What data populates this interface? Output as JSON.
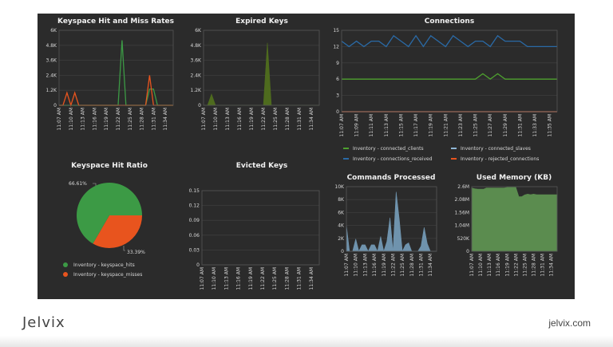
{
  "brand": {
    "logo_text": "Jelvix",
    "site": "jelvix.com"
  },
  "colors": {
    "background": "#2b2b2b",
    "grid": "#3c3c3c",
    "hits": "#3c9a45",
    "misses": "#e8541e",
    "connected_clients": "#4ea12f",
    "connected_slaves": "#8fb7d6",
    "connections_received": "#2a6aa6",
    "rejected_connections": "#e8541e",
    "expired": "#4e6b1e",
    "commands": "#6f93ad",
    "memory": "#5b8c4f"
  },
  "chart_data": [
    {
      "type": "line",
      "title": "Keyspace Hit and Miss Rates",
      "x": [
        "11:07",
        "11:08",
        "11:09",
        "11:10",
        "11:11",
        "11:12",
        "11:13",
        "11:14",
        "11:15",
        "11:16",
        "11:17",
        "11:18",
        "11:19",
        "11:20",
        "11:21",
        "11:22",
        "11:23",
        "11:24",
        "11:25",
        "11:26",
        "11:27",
        "11:28",
        "11:29",
        "11:30",
        "11:31",
        "11:32",
        "11:33",
        "11:34",
        "11:35",
        "11:36"
      ],
      "xticks": [
        "11:07 AM",
        "11:10 AM",
        "11:13 AM",
        "11:16 AM",
        "11:19 AM",
        "11:22 AM",
        "11:25 AM",
        "11:28 AM",
        "11:31 AM",
        "11:34 AM"
      ],
      "ylim": [
        0,
        6000
      ],
      "yticks": [
        0,
        1200,
        2400,
        3600,
        4800,
        6000
      ],
      "ytick_labels": [
        "0",
        "1.2K",
        "2.4K",
        "3.6K",
        "4.8K",
        "6K"
      ],
      "grid": true,
      "series": [
        {
          "key": "hits",
          "values": [
            0,
            0,
            0,
            0,
            0,
            0,
            0,
            0,
            0,
            0,
            0,
            0,
            0,
            0,
            0,
            0,
            5200,
            0,
            0,
            0,
            0,
            0,
            0,
            1300,
            1300,
            0,
            0,
            0,
            0,
            0
          ]
        },
        {
          "key": "misses",
          "values": [
            0,
            0,
            1000,
            0,
            1000,
            0,
            0,
            0,
            0,
            0,
            0,
            0,
            0,
            0,
            0,
            0,
            0,
            0,
            0,
            0,
            0,
            0,
            0,
            2400,
            0,
            0,
            0,
            0,
            0,
            0
          ]
        }
      ]
    },
    {
      "type": "area",
      "title": "Expired Keys",
      "x": [
        "11:07",
        "11:08",
        "11:09",
        "11:10",
        "11:11",
        "11:12",
        "11:13",
        "11:14",
        "11:15",
        "11:16",
        "11:17",
        "11:18",
        "11:19",
        "11:20",
        "11:21",
        "11:22",
        "11:23",
        "11:24",
        "11:25",
        "11:26",
        "11:27",
        "11:28",
        "11:29",
        "11:30",
        "11:31",
        "11:32",
        "11:33",
        "11:34",
        "11:35",
        "11:36"
      ],
      "xticks": [
        "11:07 AM",
        "11:10 AM",
        "11:13 AM",
        "11:16 AM",
        "11:19 AM",
        "11:22 AM",
        "11:25 AM",
        "11:28 AM",
        "11:31 AM",
        "11:34 AM"
      ],
      "ylim": [
        0,
        6000
      ],
      "yticks": [
        0,
        1200,
        2400,
        3600,
        4800,
        6000
      ],
      "ytick_labels": [
        "0",
        "1.2K",
        "2.4K",
        "3.6K",
        "4.8K",
        "6K"
      ],
      "grid": true,
      "series": [
        {
          "key": "expired",
          "values": [
            0,
            0,
            900,
            0,
            0,
            0,
            0,
            0,
            0,
            0,
            0,
            0,
            0,
            0,
            0,
            0,
            5000,
            0,
            0,
            0,
            0,
            0,
            0,
            0,
            0,
            0,
            0,
            0,
            0,
            0
          ]
        }
      ]
    },
    {
      "type": "line",
      "title": "Connections",
      "x": [
        "11:07",
        "11:08",
        "11:09",
        "11:10",
        "11:11",
        "11:12",
        "11:13",
        "11:14",
        "11:15",
        "11:16",
        "11:17",
        "11:18",
        "11:19",
        "11:20",
        "11:21",
        "11:22",
        "11:23",
        "11:24",
        "11:25",
        "11:26",
        "11:27",
        "11:28",
        "11:29",
        "11:30",
        "11:31",
        "11:32",
        "11:33",
        "11:34",
        "11:35",
        "11:36"
      ],
      "xticks": [
        "11:07 AM",
        "11:09 AM",
        "11:11 AM",
        "11:13 AM",
        "11:15 AM",
        "11:17 AM",
        "11:19 AM",
        "11:21 AM",
        "11:23 AM",
        "11:25 AM",
        "11:27 AM",
        "11:29 AM",
        "11:31 AM",
        "11:33 AM",
        "11:35 AM"
      ],
      "ylim": [
        0,
        15
      ],
      "yticks": [
        0,
        3,
        6,
        9,
        12,
        15
      ],
      "ytick_labels": [
        "0",
        "3",
        "6",
        "9",
        "12",
        "15"
      ],
      "grid": true,
      "legend": "bottom",
      "series": [
        {
          "key": "connected_clients",
          "name": "Inventory - connected_clients",
          "values": [
            6,
            6,
            6,
            6,
            6,
            6,
            6,
            6,
            6,
            6,
            6,
            6,
            6,
            6,
            6,
            6,
            6,
            6,
            6,
            7,
            6,
            7,
            6,
            6,
            6,
            6,
            6,
            6,
            6,
            6
          ]
        },
        {
          "key": "connected_slaves",
          "name": "Inventory - connected_slaves",
          "values": [
            0,
            0,
            0,
            0,
            0,
            0,
            0,
            0,
            0,
            0,
            0,
            0,
            0,
            0,
            0,
            0,
            0,
            0,
            0,
            0,
            0,
            0,
            0,
            0,
            0,
            0,
            0,
            0,
            0,
            0
          ]
        },
        {
          "key": "connections_received",
          "name": "Inventory - connections_received",
          "values": [
            13,
            12,
            13,
            12,
            13,
            13,
            12,
            14,
            13,
            12,
            14,
            12,
            14,
            13,
            12,
            14,
            13,
            12,
            13,
            13,
            12,
            14,
            13,
            13,
            13,
            12,
            12,
            12,
            12,
            12
          ]
        },
        {
          "key": "rejected_connections",
          "name": "Inventory - rejected_connections",
          "values": [
            0,
            0,
            0,
            0,
            0,
            0,
            0,
            0,
            0,
            0,
            0,
            0,
            0,
            0,
            0,
            0,
            0,
            0,
            0,
            0,
            0,
            0,
            0,
            0,
            0,
            0,
            0,
            0,
            0,
            0
          ]
        }
      ]
    },
    {
      "type": "pie",
      "title": "Keyspace Hit Ratio",
      "legend": "bottom",
      "slices": [
        {
          "key": "hits",
          "name": "Inventory - keyspace_hits",
          "value": 66.61,
          "label": "66.61%"
        },
        {
          "key": "misses",
          "name": "Inventory - keyspace_misses",
          "value": 33.39,
          "label": "33.39%"
        }
      ]
    },
    {
      "type": "line",
      "title": "Evicted Keys",
      "x": [
        "11:07",
        "11:08",
        "11:09",
        "11:10",
        "11:11",
        "11:12",
        "11:13",
        "11:14",
        "11:15",
        "11:16",
        "11:17",
        "11:18",
        "11:19",
        "11:20",
        "11:21",
        "11:22",
        "11:23",
        "11:24",
        "11:25",
        "11:26",
        "11:27",
        "11:28",
        "11:29",
        "11:30",
        "11:31",
        "11:32",
        "11:33",
        "11:34",
        "11:35",
        "11:36"
      ],
      "xticks": [
        "11:07 AM",
        "11:10 AM",
        "11:13 AM",
        "11:16 AM",
        "11:19 AM",
        "11:22 AM",
        "11:25 AM",
        "11:28 AM",
        "11:31 AM",
        "11:34 AM"
      ],
      "ylim": [
        0,
        0.15
      ],
      "yticks": [
        0,
        0.03,
        0.06,
        0.09,
        0.12,
        0.15
      ],
      "ytick_labels": [
        "0",
        "0.03",
        "0.06",
        "0.09",
        "0.12",
        "0.15"
      ],
      "grid": true,
      "series": []
    },
    {
      "type": "area",
      "title": "Commands Processed",
      "x": [
        "11:07",
        "11:08",
        "11:09",
        "11:10",
        "11:11",
        "11:12",
        "11:13",
        "11:14",
        "11:15",
        "11:16",
        "11:17",
        "11:18",
        "11:19",
        "11:20",
        "11:21",
        "11:22",
        "11:23",
        "11:24",
        "11:25",
        "11:26",
        "11:27",
        "11:28",
        "11:29",
        "11:30",
        "11:31",
        "11:32",
        "11:33",
        "11:34",
        "11:35",
        "11:36"
      ],
      "xticks": [
        "11:07 AM",
        "11:10 AM",
        "11:13 AM",
        "11:16 AM",
        "11:19 AM",
        "11:22 AM",
        "11:25 AM",
        "11:28 AM",
        "11:31 AM",
        "11:34 AM"
      ],
      "ylim": [
        0,
        10000
      ],
      "yticks": [
        0,
        2000,
        4000,
        6000,
        8000,
        10000
      ],
      "ytick_labels": [
        "0",
        "2K",
        "4K",
        "6K",
        "8K",
        "10K"
      ],
      "grid": true,
      "series": [
        {
          "key": "commands",
          "values": [
            4000,
            0,
            0,
            1900,
            0,
            1000,
            1000,
            0,
            1000,
            1000,
            0,
            2300,
            0,
            1500,
            5200,
            0,
            9200,
            5000,
            0,
            1000,
            1300,
            0,
            0,
            0,
            800,
            3700,
            1200,
            0,
            0,
            0
          ]
        }
      ]
    },
    {
      "type": "area",
      "title": "Used Memory (KB)",
      "x": [
        "11:07",
        "11:08",
        "11:09",
        "11:10",
        "11:11",
        "11:12",
        "11:13",
        "11:14",
        "11:15",
        "11:16",
        "11:17",
        "11:18",
        "11:19",
        "11:20",
        "11:21",
        "11:22",
        "11:23",
        "11:24",
        "11:25",
        "11:26",
        "11:27",
        "11:28",
        "11:29",
        "11:30",
        "11:31",
        "11:32",
        "11:33",
        "11:34",
        "11:35",
        "11:36"
      ],
      "xticks": [
        "11:07 AM",
        "11:10 AM",
        "11:13 AM",
        "11:16 AM",
        "11:19 AM",
        "11:22 AM",
        "11:25 AM",
        "11:28 AM",
        "11:31 AM",
        "11:34 AM"
      ],
      "ylim": [
        0,
        2600000
      ],
      "yticks": [
        0,
        520000,
        1040000,
        1560000,
        2080000,
        2600000
      ],
      "ytick_labels": [
        "0",
        "520K",
        "1.04M",
        "1.56M",
        "2.08M",
        "2.6M"
      ],
      "grid": true,
      "series": [
        {
          "key": "memory",
          "values": [
            2550000,
            2520000,
            2500000,
            2500000,
            2500000,
            2550000,
            2550000,
            2550000,
            2550000,
            2550000,
            2550000,
            2550000,
            2570000,
            2570000,
            2570000,
            2570000,
            2200000,
            2200000,
            2270000,
            2300000,
            2280000,
            2300000,
            2280000,
            2280000,
            2280000,
            2280000,
            2280000,
            2280000,
            2280000,
            2280000
          ]
        }
      ]
    }
  ]
}
